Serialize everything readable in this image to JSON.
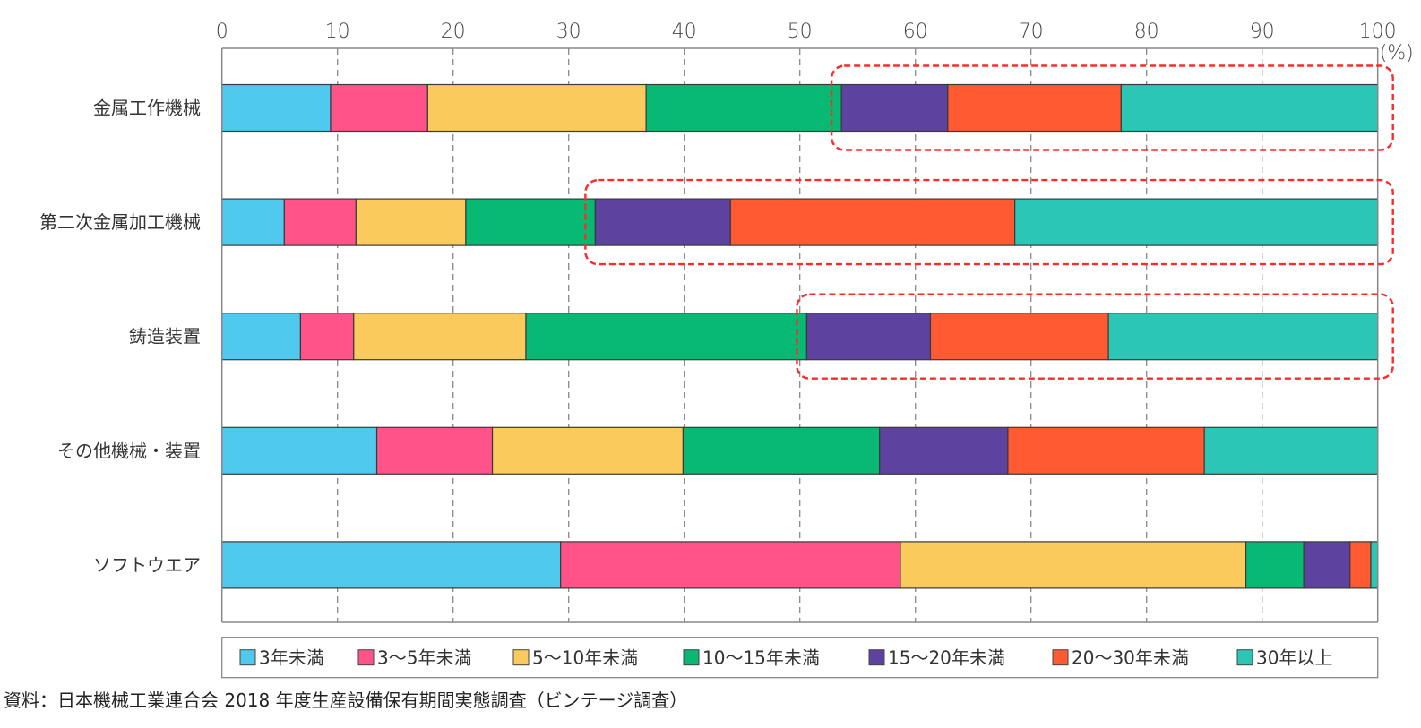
{
  "chart_data": {
    "type": "bar",
    "orientation": "horizontal",
    "stacked": true,
    "title": "",
    "xlabel": "",
    "ylabel": "",
    "unit_label": "(%)",
    "xlim": [
      0,
      100
    ],
    "x_ticks": [
      "0",
      "10",
      "20",
      "30",
      "40",
      "50",
      "60",
      "70",
      "80",
      "90",
      "100"
    ],
    "grid": true,
    "legend_position": "bottom",
    "categories": [
      "金属工作機械",
      "第二次金属加工機械",
      "鋳造装置",
      "その他機械・装置",
      "ソフトウエア"
    ],
    "series": [
      {
        "name": "3年未満",
        "color": "#4fc9ee",
        "values": [
          9.4,
          5.4,
          6.8,
          13.4,
          29.3
        ]
      },
      {
        "name": "3〜5年未満",
        "color": "#ff5389",
        "values": [
          8.4,
          6.2,
          4.6,
          10.0,
          29.4
        ]
      },
      {
        "name": "5〜10年未満",
        "color": "#facb5c",
        "values": [
          18.9,
          9.5,
          14.9,
          16.5,
          29.9
        ]
      },
      {
        "name": "10〜15年未満",
        "color": "#08b974",
        "values": [
          16.9,
          11.2,
          24.3,
          17.0,
          5.0
        ]
      },
      {
        "name": "15〜20年未満",
        "color": "#5e42a0",
        "values": [
          9.2,
          11.7,
          10.7,
          11.1,
          4.0
        ]
      },
      {
        "name": "20〜30年未満",
        "color": "#ff5a31",
        "values": [
          15.0,
          24.6,
          15.4,
          17.0,
          1.8
        ]
      },
      {
        "name": "30年以上",
        "color": "#2bc6b6",
        "values": [
          22.2,
          31.4,
          23.3,
          15.0,
          0.6
        ]
      }
    ],
    "annotations": [
      {
        "type": "dashed-highlight",
        "category": "金属工作機械",
        "from_series": "15〜20年未満",
        "color": "#ff2a2a"
      },
      {
        "type": "dashed-highlight",
        "category": "第二次金属加工機械",
        "from_series": "15〜20年未満",
        "color": "#ff2a2a"
      },
      {
        "type": "dashed-highlight",
        "category": "鋳造装置",
        "from_series": "15〜20年未満",
        "color": "#ff2a2a"
      }
    ]
  },
  "source_note": "資料：日本機械工業連合会 2018 年度生産設備保有期間実態調査（ビンテージ調査）"
}
